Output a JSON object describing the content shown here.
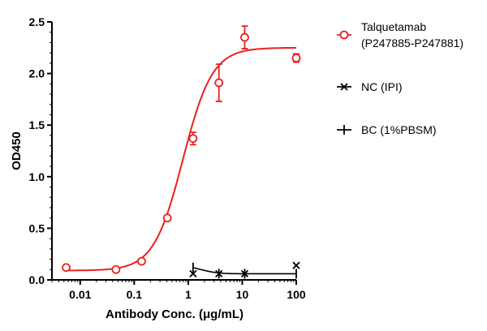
{
  "chart_data": {
    "type": "scatter",
    "xlabel": "Antibody Conc. (μg/mL)",
    "ylabel": "OD450",
    "xscale": "log",
    "xlim": [
      0.003,
      100
    ],
    "ylim": [
      0,
      2.5
    ],
    "xticks": [
      0.01,
      0.1,
      1,
      10,
      100
    ],
    "xtick_labels": [
      "0.01",
      "0.1",
      "1",
      "10",
      "100"
    ],
    "yticks": [
      0,
      0.5,
      1,
      1.5,
      2,
      2.5
    ],
    "ytick_labels": [
      "0.0",
      "0.5",
      "1.0",
      "1.5",
      "2.0",
      "2.5"
    ],
    "grid": false,
    "legend_position": "right",
    "series": [
      {
        "name": "Talquetamab",
        "name_line2": "(P247885-P247881)",
        "color": "#e8211f",
        "marker": "circle",
        "x": [
          0.0055,
          0.046,
          0.137,
          0.41,
          1.23,
          3.7,
          11.1,
          100
        ],
        "y": [
          0.12,
          0.1,
          0.18,
          0.6,
          1.37,
          1.91,
          2.35,
          2.15
        ],
        "error": [
          0.01,
          0.01,
          0.01,
          0.01,
          0.06,
          0.18,
          0.11,
          0.04
        ],
        "fit": {
          "bottom": 0.09,
          "top": 2.25,
          "ec50": 0.8,
          "hill": 1.6
        }
      },
      {
        "name": "NC (IPI)",
        "color": "#000000",
        "marker": "x",
        "x": [
          1.23,
          3.7,
          11.1,
          100
        ],
        "y": [
          0.06,
          0.06,
          0.06,
          0.14
        ]
      },
      {
        "name": "BC (1%PBSM)",
        "color": "#000000",
        "marker": "plus",
        "x": [
          1.23,
          3.7,
          11.1,
          100
        ],
        "y": [
          0.12,
          0.06,
          0.06,
          0.06
        ],
        "fit": {
          "bottom": 0.06,
          "top": 0.12,
          "decay": 1.2
        }
      }
    ]
  }
}
